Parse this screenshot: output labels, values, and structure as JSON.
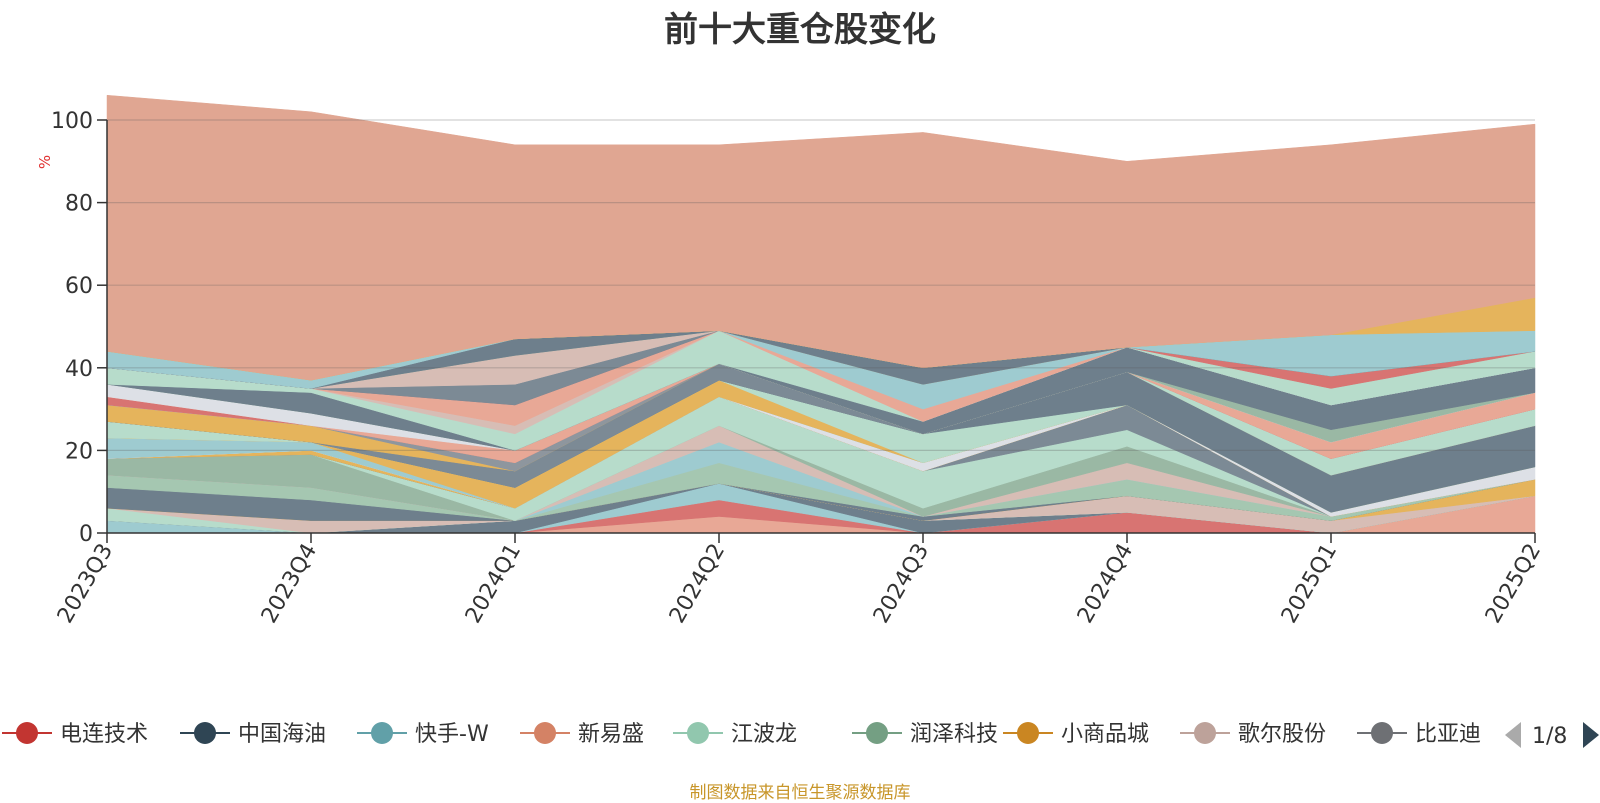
{
  "title": "前十大重仓股变化",
  "source_note": "制图数据来自恒生聚源数据库",
  "legend_page": "1/8",
  "chart_data": {
    "type": "area",
    "stacked": true,
    "title": "前十大重仓股变化",
    "ylabel": "%",
    "ylim": [
      0,
      100
    ],
    "yticks": [
      0,
      20,
      40,
      60,
      80,
      100
    ],
    "x": [
      "2023Q3",
      "2023Q4",
      "2024Q1",
      "2024Q2",
      "2024Q3",
      "2024Q4",
      "2025Q1",
      "2025Q2"
    ],
    "grid": true,
    "legend_position": "bottom",
    "legend": [
      {
        "name": "电连技术",
        "color": "#c23531"
      },
      {
        "name": "中国海油",
        "color": "#2f4554"
      },
      {
        "name": "快手-W",
        "color": "#61a0a8"
      },
      {
        "name": "新易盛",
        "color": "#d48265"
      },
      {
        "name": "江波龙",
        "color": "#91c7ae"
      },
      {
        "name": "润泽科技",
        "color": "#749f83"
      },
      {
        "name": "小商品城",
        "color": "#ca8622"
      },
      {
        "name": "歌尔股份",
        "color": "#bda29a"
      },
      {
        "name": "比亚迪",
        "color": "#6e7074"
      }
    ],
    "layers": [
      {
        "color": "#e8a896",
        "values": [
          0,
          0,
          0,
          4,
          0,
          0,
          0,
          9
        ]
      },
      {
        "color": "#d87472",
        "values": [
          0,
          0,
          0,
          4,
          0,
          5,
          0,
          0
        ]
      },
      {
        "color": "#9ecbd0",
        "values": [
          3,
          0,
          0,
          4,
          0,
          0,
          0,
          0
        ]
      },
      {
        "color": "#6e7f8c",
        "values": [
          0,
          0,
          3,
          0,
          3,
          0,
          0,
          0
        ]
      },
      {
        "color": "#b7dccb",
        "values": [
          3,
          0,
          0,
          0,
          0,
          0,
          0,
          0
        ]
      },
      {
        "color": "#d7bdb5",
        "values": [
          0,
          3,
          0,
          0,
          0,
          4,
          3,
          0
        ]
      },
      {
        "color": "#e5b45c",
        "values": [
          0,
          0,
          0,
          0,
          0,
          0,
          0,
          4
        ]
      },
      {
        "color": "#6e7f8c",
        "values": [
          5,
          5,
          0,
          0,
          1,
          0,
          0,
          0
        ]
      },
      {
        "color": "#a5c7b1",
        "values": [
          3,
          3,
          0,
          5,
          0,
          4,
          1,
          0
        ]
      },
      {
        "color": "#9ecbd0",
        "values": [
          0,
          0,
          0,
          5,
          0,
          0,
          0,
          0
        ]
      },
      {
        "color": "#d7bdb5",
        "values": [
          0,
          0,
          0,
          4,
          0,
          4,
          0,
          0
        ]
      },
      {
        "color": "#9ab8a4",
        "values": [
          4,
          8,
          0,
          0,
          2,
          4,
          0,
          0
        ]
      },
      {
        "color": "#b7dccb",
        "values": [
          0,
          0,
          3,
          7,
          9,
          4,
          0,
          0
        ]
      },
      {
        "color": "#7c8a95",
        "values": [
          0,
          0,
          0,
          0,
          0,
          6,
          0,
          0
        ]
      },
      {
        "color": "#e5b45c",
        "values": [
          0,
          1,
          0,
          0,
          0,
          0,
          0,
          0
        ]
      },
      {
        "color": "#dde0e6",
        "values": [
          0,
          0,
          0,
          0,
          2,
          0,
          1,
          3
        ]
      },
      {
        "color": "#9ecbd0",
        "values": [
          5,
          2,
          0,
          0,
          0,
          0,
          0,
          0
        ]
      },
      {
        "color": "#e5b45c",
        "values": [
          0,
          0,
          5,
          4,
          0,
          0,
          0,
          0
        ]
      },
      {
        "color": "#b7dccb",
        "values": [
          4,
          0,
          0,
          0,
          7,
          0,
          0,
          0
        ]
      },
      {
        "color": "#6e7f8c",
        "values": [
          0,
          0,
          0,
          0,
          0,
          8,
          9,
          10
        ]
      },
      {
        "color": "#7c8a95",
        "values": [
          0,
          0,
          4,
          4,
          0,
          0,
          0,
          0
        ]
      },
      {
        "color": "#e5b45c",
        "values": [
          4,
          4,
          0,
          0,
          0,
          0,
          0,
          0
        ]
      },
      {
        "color": "#8e969e",
        "values": [
          0,
          0,
          2,
          0,
          0,
          0,
          0,
          0
        ]
      },
      {
        "color": "#b7dccb",
        "values": [
          0,
          0,
          0,
          0,
          0,
          0,
          4,
          4
        ]
      },
      {
        "color": "#d87472",
        "values": [
          2,
          0,
          0,
          0,
          0,
          0,
          0,
          0
        ]
      },
      {
        "color": "#e8a896",
        "values": [
          0,
          0,
          3,
          0,
          0,
          0,
          4,
          4
        ]
      },
      {
        "color": "#dde0e6",
        "values": [
          3,
          3,
          0,
          0,
          0,
          0,
          0,
          0
        ]
      },
      {
        "color": "#9ab8a4",
        "values": [
          0,
          0,
          0,
          0,
          0,
          0,
          3,
          0
        ]
      },
      {
        "color": "#6e7f8c",
        "values": [
          0,
          5,
          0,
          0,
          3,
          6,
          6,
          6
        ]
      },
      {
        "color": "#b7dccb",
        "values": [
          4,
          1,
          4,
          8,
          0,
          0,
          0,
          0
        ]
      },
      {
        "color": "#d7bdb5",
        "values": [
          0,
          0,
          2,
          0,
          0,
          0,
          0,
          0
        ]
      },
      {
        "color": "#e8a896",
        "values": [
          0,
          0,
          5,
          0,
          3,
          0,
          0,
          0
        ]
      },
      {
        "color": "#9ecbd0",
        "values": [
          0,
          0,
          0,
          0,
          6,
          0,
          0,
          0
        ]
      },
      {
        "color": "#b7dccb",
        "values": [
          0,
          0,
          0,
          0,
          0,
          0,
          4,
          4
        ]
      },
      {
        "color": "#d87472",
        "values": [
          0,
          0,
          0,
          0,
          0,
          0,
          3,
          0
        ]
      },
      {
        "color": "#7c8a95",
        "values": [
          0,
          0,
          5,
          0,
          0,
          0,
          0,
          0
        ]
      },
      {
        "color": "#d7bdb5",
        "values": [
          0,
          0,
          7,
          0,
          0,
          0,
          0,
          0
        ]
      },
      {
        "color": "#9ab8a4",
        "values": [
          0,
          0,
          0,
          0,
          0,
          0,
          0,
          0
        ]
      },
      {
        "color": "#6e7f8c",
        "values": [
          0,
          0,
          4,
          0,
          4,
          0,
          0,
          0
        ]
      },
      {
        "color": "#9ecbd0",
        "values": [
          4,
          2,
          0,
          0,
          0,
          0,
          10,
          5
        ]
      },
      {
        "color": "#e5b45c",
        "values": [
          0,
          0,
          0,
          0,
          0,
          0,
          0,
          8
        ]
      },
      {
        "color": "#e0a692",
        "values": [
          62,
          65,
          47,
          45,
          57,
          45,
          46,
          42
        ]
      }
    ]
  }
}
